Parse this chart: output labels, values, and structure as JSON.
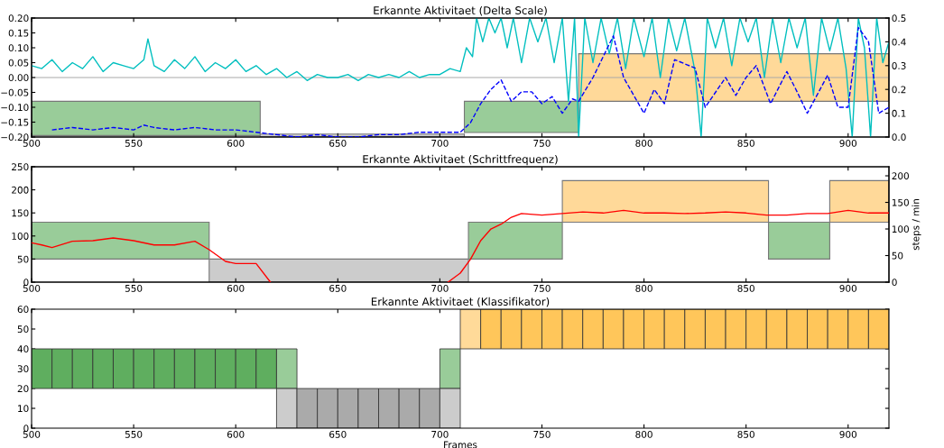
{
  "chart_data": [
    {
      "type": "line",
      "title": "Erkannte Aktivitaet (Delta Scale)",
      "xlim": [
        500,
        920
      ],
      "xticks": [
        500,
        550,
        600,
        650,
        700,
        750,
        800,
        850,
        900
      ],
      "ylim": [
        -0.2,
        0.2
      ],
      "yticks": [
        {
          "value": -0.2,
          "label": "−0.20"
        },
        {
          "value": -0.15,
          "label": "−0.15"
        },
        {
          "value": -0.1,
          "label": "−0.10"
        },
        {
          "value": -0.05,
          "label": "−0.05"
        },
        {
          "value": 0,
          "label": "0.00"
        },
        {
          "value": 0.05,
          "label": "0.05"
        },
        {
          "value": 0.1,
          "label": "0.10"
        },
        {
          "value": 0.15,
          "label": "0.15"
        },
        {
          "value": 0.2,
          "label": "0.20"
        }
      ],
      "y2lim": [
        0,
        0.5
      ],
      "y2ticks": [
        {
          "value": 0,
          "label": "0.0"
        },
        {
          "value": 0.1,
          "label": "0.1"
        },
        {
          "value": 0.2,
          "label": "0.2"
        },
        {
          "value": 0.3,
          "label": "0.3"
        },
        {
          "value": 0.4,
          "label": "0.4"
        },
        {
          "value": 0.5,
          "label": "0.5"
        }
      ],
      "ref_lines": [
        {
          "axis": "y",
          "value": 0,
          "color": "#aaaaaa"
        }
      ],
      "series": [
        {
          "type": "area",
          "color": "#99cc99",
          "x": [
            500,
            500,
            612,
            612
          ],
          "values": [
            -0.195,
            -0.08,
            -0.08,
            -0.195
          ]
        },
        {
          "type": "area",
          "color": "#cccccc",
          "x": [
            612,
            612,
            712,
            712
          ],
          "values": [
            -0.2,
            -0.19,
            -0.19,
            -0.2
          ]
        },
        {
          "type": "area",
          "color": "#99cc99",
          "x": [
            712,
            712,
            768,
            768
          ],
          "values": [
            -0.185,
            -0.08,
            -0.08,
            -0.185
          ]
        },
        {
          "type": "area",
          "color": "#ffd999",
          "x": [
            768,
            768,
            920,
            920
          ],
          "values": [
            -0.08,
            0.08,
            0.08,
            -0.08
          ]
        },
        {
          "type": "line",
          "color": "#00bfbf",
          "line_style": "solid",
          "x": [
            500,
            505,
            510,
            515,
            520,
            525,
            530,
            535,
            540,
            545,
            550,
            555,
            557,
            560,
            565,
            570,
            575,
            580,
            585,
            590,
            595,
            600,
            605,
            610,
            615,
            620,
            625,
            630,
            635,
            640,
            645,
            650,
            655,
            660,
            665,
            670,
            675,
            680,
            685,
            690,
            695,
            700,
            705,
            710,
            713,
            716,
            718,
            721,
            724,
            727,
            730,
            733,
            736,
            740,
            744,
            748,
            752,
            756,
            760,
            763,
            766,
            768,
            771,
            775,
            779,
            783,
            787,
            791,
            795,
            800,
            804,
            808,
            812,
            816,
            820,
            825,
            828,
            831,
            835,
            839,
            843,
            847,
            851,
            855,
            859,
            863,
            867,
            871,
            875,
            879,
            883,
            887,
            891,
            895,
            899,
            902,
            905,
            908,
            911,
            914,
            917,
            920
          ],
          "values": [
            0.04,
            0.03,
            0.06,
            0.02,
            0.05,
            0.03,
            0.07,
            0.02,
            0.05,
            0.04,
            0.03,
            0.06,
            0.13,
            0.04,
            0.02,
            0.06,
            0.03,
            0.07,
            0.02,
            0.05,
            0.03,
            0.06,
            0.02,
            0.04,
            0.01,
            0.03,
            0.0,
            0.02,
            -0.01,
            0.01,
            0.0,
            0.0,
            0.01,
            -0.01,
            0.01,
            0.0,
            0.01,
            0.0,
            0.02,
            0.0,
            0.01,
            0.01,
            0.03,
            0.02,
            0.1,
            0.07,
            0.2,
            0.12,
            0.2,
            0.15,
            0.2,
            0.1,
            0.2,
            0.05,
            0.2,
            0.12,
            0.2,
            0.05,
            0.2,
            -0.08,
            0.2,
            -0.2,
            0.2,
            0.05,
            0.2,
            0.08,
            0.2,
            0.03,
            0.2,
            0.07,
            0.2,
            0.0,
            0.2,
            0.09,
            0.2,
            0.02,
            -0.2,
            0.2,
            0.1,
            0.2,
            0.04,
            0.2,
            0.12,
            0.2,
            0.0,
            0.2,
            0.05,
            0.2,
            0.1,
            0.2,
            -0.06,
            0.2,
            0.09,
            0.2,
            0.03,
            -0.2,
            0.2,
            0.1,
            -0.2,
            0.2,
            0.05,
            0.12
          ]
        },
        {
          "type": "line",
          "axis": "y2",
          "color": "#0000ff",
          "line_style": "dashed",
          "x": [
            510,
            520,
            530,
            540,
            550,
            555,
            560,
            570,
            580,
            590,
            600,
            610,
            620,
            630,
            640,
            650,
            660,
            670,
            680,
            690,
            700,
            710,
            715,
            720,
            725,
            730,
            735,
            740,
            745,
            750,
            755,
            760,
            765,
            768,
            775,
            785,
            790,
            800,
            805,
            810,
            815,
            825,
            830,
            840,
            845,
            850,
            855,
            862,
            870,
            875,
            880,
            890,
            895,
            900,
            905,
            910,
            915,
            920
          ],
          "values": [
            0.03,
            0.04,
            0.03,
            0.04,
            0.03,
            0.05,
            0.04,
            0.03,
            0.04,
            0.03,
            0.03,
            0.02,
            0.01,
            0.0,
            0.01,
            0.0,
            0.0,
            0.01,
            0.01,
            0.02,
            0.02,
            0.02,
            0.06,
            0.14,
            0.2,
            0.24,
            0.15,
            0.19,
            0.19,
            0.14,
            0.17,
            0.1,
            0.16,
            0.15,
            0.25,
            0.425,
            0.25,
            0.1,
            0.2,
            0.14,
            0.325,
            0.29,
            0.125,
            0.25,
            0.175,
            0.25,
            0.3,
            0.14,
            0.275,
            0.19,
            0.1,
            0.26,
            0.125,
            0.125,
            0.46,
            0.4,
            0.1,
            0.125
          ]
        }
      ]
    },
    {
      "type": "line",
      "title": "Erkannte Aktivitaet (Schrittfrequenz)",
      "y2label": "steps / min",
      "xlim": [
        500,
        920
      ],
      "xticks": [
        500,
        550,
        600,
        650,
        700,
        750,
        800,
        850,
        900
      ],
      "ylim": [
        0,
        250
      ],
      "yticks": [
        0,
        50,
        100,
        150,
        200,
        250
      ],
      "y2lim": [
        0,
        217
      ],
      "y2ticks": [
        0,
        50,
        100,
        150,
        200
      ],
      "series": [
        {
          "type": "area",
          "color": "#99cc99",
          "x": [
            500,
            500,
            587,
            587
          ],
          "values": [
            50,
            130,
            130,
            50
          ]
        },
        {
          "type": "area",
          "color": "#cccccc",
          "x": [
            587,
            587,
            714,
            714
          ],
          "values": [
            0,
            50,
            50,
            0
          ]
        },
        {
          "type": "area",
          "color": "#99cc99",
          "x": [
            714,
            714,
            760,
            760
          ],
          "values": [
            50,
            130,
            130,
            50
          ]
        },
        {
          "type": "area",
          "color": "#ffd999",
          "x": [
            760,
            760,
            861,
            861
          ],
          "values": [
            130,
            220,
            220,
            130
          ]
        },
        {
          "type": "area",
          "color": "#99cc99",
          "x": [
            861,
            861,
            891,
            891
          ],
          "values": [
            50,
            130,
            130,
            50
          ]
        },
        {
          "type": "area",
          "color": "#ffd999",
          "x": [
            891,
            891,
            920,
            920
          ],
          "values": [
            130,
            220,
            220,
            130
          ]
        },
        {
          "type": "line",
          "axis": "y2",
          "color": "#ff0000",
          "line_style": "solid",
          "x": [
            500,
            505,
            510,
            520,
            530,
            540,
            550,
            560,
            570,
            580,
            587,
            595,
            600,
            610,
            617,
            660,
            704,
            710,
            715,
            720,
            725,
            730,
            735,
            740,
            750,
            760,
            770,
            780,
            790,
            800,
            810,
            820,
            830,
            840,
            850,
            860,
            870,
            880,
            890,
            900,
            910,
            920
          ],
          "values": [
            74,
            70,
            65,
            77,
            78,
            83,
            78,
            70,
            70,
            77,
            61,
            39,
            35,
            35,
            0,
            null,
            0,
            17,
            43,
            78,
            100,
            109,
            122,
            129,
            126,
            129,
            132,
            130,
            135,
            130,
            130,
            129,
            130,
            132,
            130,
            126,
            126,
            129,
            129,
            135,
            130,
            130
          ]
        }
      ]
    },
    {
      "type": "bar",
      "title": "Erkannte Aktivitaet (Klassifikator)",
      "xlabel": "Frames",
      "xlim": [
        500,
        920
      ],
      "xticks": [
        500,
        550,
        600,
        650,
        700,
        750,
        800,
        850,
        900
      ],
      "ylim": [
        0,
        60
      ],
      "yticks": [
        0,
        10,
        20,
        30,
        40,
        50,
        60
      ],
      "series": [
        {
          "x": [
            505,
            515,
            525,
            535,
            545,
            555,
            565,
            575,
            585,
            595,
            605,
            615,
            625,
            705,
            715,
            725,
            735,
            745,
            755,
            765,
            775,
            785,
            795,
            805,
            815,
            825,
            835,
            845,
            855,
            865,
            875,
            885,
            895,
            905,
            915
          ],
          "values": [
            20,
            20,
            20,
            20,
            20,
            20,
            20,
            20,
            20,
            20,
            20,
            20,
            20,
            20,
            20,
            20,
            20,
            20,
            20,
            20,
            20,
            20,
            20,
            20,
            20,
            20,
            20,
            20,
            20,
            20,
            20,
            20,
            20,
            20,
            20
          ],
          "base": [
            20,
            20,
            20,
            20,
            20,
            20,
            20,
            20,
            20,
            20,
            20,
            20,
            20,
            20,
            40,
            40,
            40,
            40,
            40,
            40,
            40,
            40,
            40,
            40,
            40,
            40,
            40,
            40,
            40,
            40,
            40,
            40,
            40,
            40,
            40
          ],
          "colors": [
            "#5fae5f",
            "#5fae5f",
            "#5fae5f",
            "#5fae5f",
            "#5fae5f",
            "#5fae5f",
            "#5fae5f",
            "#5fae5f",
            "#5fae5f",
            "#5fae5f",
            "#5fae5f",
            "#5fae5f",
            "#99cc99",
            "#99cc99",
            "#ffda99",
            "#ffc65a",
            "#ffc65a",
            "#ffc65a",
            "#ffc65a",
            "#ffc65a",
            "#ffc65a",
            "#ffc65a",
            "#ffc65a",
            "#ffc65a",
            "#ffc65a",
            "#ffc65a",
            "#ffc65a",
            "#ffc65a",
            "#ffc65a",
            "#ffc65a",
            "#ffc65a",
            "#ffc65a",
            "#ffc65a",
            "#ffc65a",
            "#ffc65a"
          ]
        },
        {
          "x": [
            625,
            635,
            645,
            655,
            665,
            675,
            685,
            695,
            705
          ],
          "values": [
            20,
            20,
            20,
            20,
            20,
            20,
            20,
            20,
            20
          ],
          "base": [
            0,
            0,
            0,
            0,
            0,
            0,
            0,
            0,
            0
          ],
          "colors": [
            "#cccccc",
            "#aaaaaa",
            "#aaaaaa",
            "#aaaaaa",
            "#aaaaaa",
            "#aaaaaa",
            "#aaaaaa",
            "#aaaaaa",
            "#cccccc"
          ]
        }
      ]
    }
  ]
}
